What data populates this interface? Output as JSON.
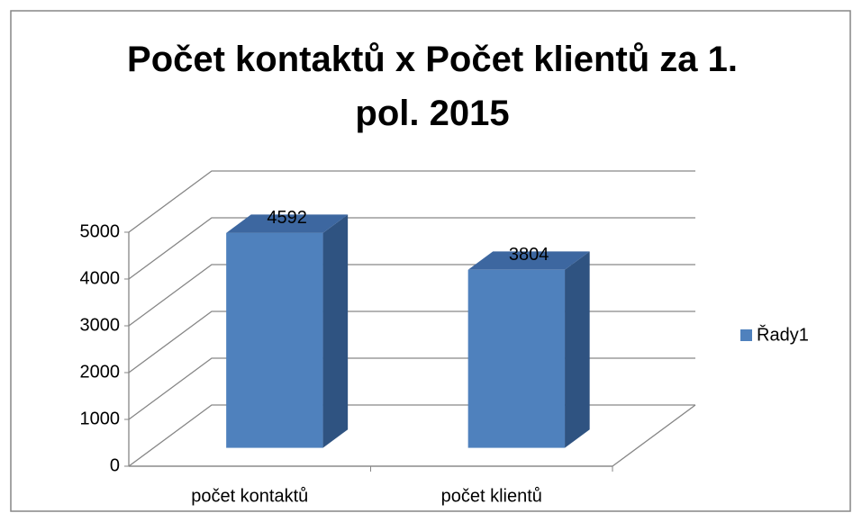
{
  "chart_data": {
    "type": "bar3d",
    "title": "Počet kontaktů x Počet klientů za 1. pol. 2015",
    "categories": [
      "počet kontaktů",
      "počet klientů"
    ],
    "series": [
      {
        "name": "Řady1",
        "color": "#4f81bd",
        "values": [
          4592,
          3804
        ]
      }
    ],
    "ylim": [
      0,
      5000
    ],
    "yticks": [
      0,
      1000,
      2000,
      3000,
      4000,
      5000
    ],
    "grid": true,
    "legend": "right"
  }
}
